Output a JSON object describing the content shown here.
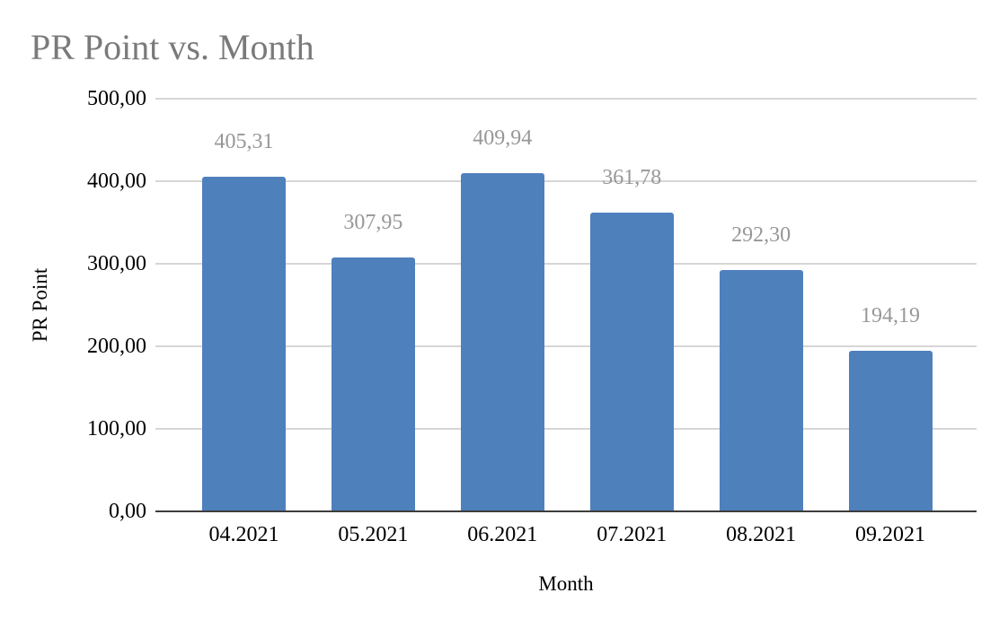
{
  "chart_data": {
    "type": "bar",
    "title": "PR Point vs. Month",
    "xlabel": "Month",
    "ylabel": "PR Point",
    "categories": [
      "04.2021",
      "05.2021",
      "06.2021",
      "07.2021",
      "08.2021",
      "09.2021"
    ],
    "values": [
      405.31,
      307.95,
      409.94,
      361.78,
      292.3,
      194.19
    ],
    "value_labels": [
      "405,31",
      "307,95",
      "409,94",
      "361,78",
      "292,30",
      "194,19"
    ],
    "y_ticks": [
      {
        "label": "500,00",
        "value": 500
      },
      {
        "label": "400,00",
        "value": 400
      },
      {
        "label": "300,00",
        "value": 300
      },
      {
        "label": "200,00",
        "value": 200
      },
      {
        "label": "100,00",
        "value": 100
      },
      {
        "label": "0,00",
        "value": 0
      }
    ],
    "ylim": [
      0,
      500
    ],
    "grid": true,
    "legend": "none",
    "colors": {
      "bar": "#4e80bc",
      "title_text": "#7a7a7a",
      "data_label": "#979797",
      "gridline": "#d6d6d6",
      "axis_line": "#3d3d3d",
      "tick_text": "#000000"
    }
  }
}
